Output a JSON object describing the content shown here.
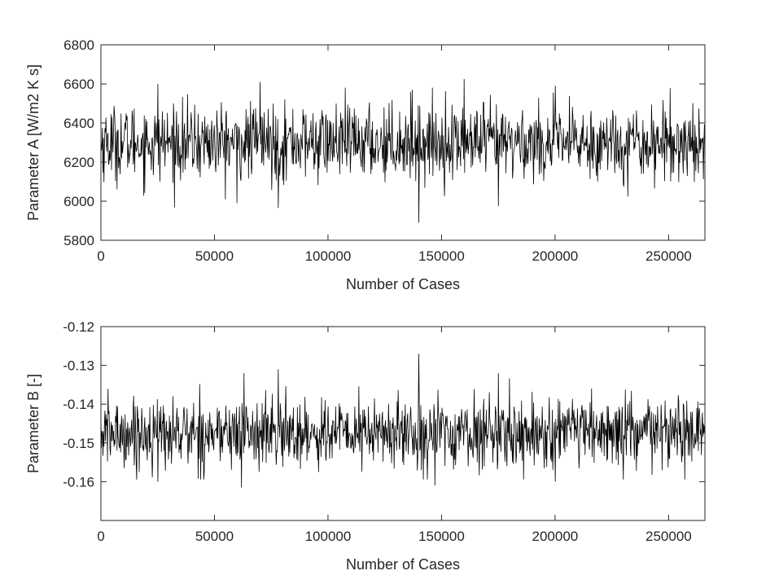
{
  "chart_data": [
    {
      "type": "line",
      "xlabel": "Number of Cases",
      "ylabel": "Parameter A [W/m2 K s]",
      "xlim": [
        0,
        266000
      ],
      "ylim": [
        5800,
        6800
      ],
      "xticks": [
        0,
        50000,
        100000,
        150000,
        200000,
        250000
      ],
      "yticks": [
        5800,
        6000,
        6200,
        6400,
        6600,
        6800
      ],
      "xtick_labels": [
        "0",
        "50000",
        "100000",
        "150000",
        "200000",
        "250000"
      ],
      "ytick_labels": [
        "5800",
        "6000",
        "6200",
        "6400",
        "6600",
        "6800"
      ],
      "grid": false,
      "series": [
        {
          "color": "#000000",
          "n_points": 1200,
          "mean": 6300,
          "std": 95,
          "min": 5890,
          "max": 6625,
          "notable_points": [
            {
              "x": 25000,
              "y": 6600
            },
            {
              "x": 60000,
              "y": 5990
            },
            {
              "x": 70000,
              "y": 6610
            },
            {
              "x": 78000,
              "y": 5965
            },
            {
              "x": 137000,
              "y": 6570
            },
            {
              "x": 140000,
              "y": 5890
            },
            {
              "x": 160000,
              "y": 6625
            },
            {
              "x": 175000,
              "y": 5975
            },
            {
              "x": 200000,
              "y": 6590
            }
          ]
        }
      ]
    },
    {
      "type": "line",
      "xlabel": "Number of Cases",
      "ylabel": "Parameter B [-]",
      "xlim": [
        0,
        266000
      ],
      "ylim": [
        -0.17,
        -0.12
      ],
      "xticks": [
        0,
        50000,
        100000,
        150000,
        200000,
        250000
      ],
      "yticks": [
        -0.16,
        -0.15,
        -0.14,
        -0.13,
        -0.12
      ],
      "xtick_labels": [
        "0",
        "50000",
        "100000",
        "150000",
        "200000",
        "250000"
      ],
      "ytick_labels": [
        "-0.16",
        "-0.15",
        "-0.14",
        "-0.13",
        "-0.12"
      ],
      "grid": false,
      "series": [
        {
          "color": "#000000",
          "n_points": 1200,
          "mean": -0.1475,
          "std": 0.0045,
          "min": -0.1615,
          "max": -0.127,
          "notable_points": [
            {
              "x": 25000,
              "y": -0.16
            },
            {
              "x": 62000,
              "y": -0.1615
            },
            {
              "x": 63000,
              "y": -0.132
            },
            {
              "x": 78000,
              "y": -0.131
            },
            {
              "x": 140000,
              "y": -0.127
            },
            {
              "x": 147000,
              "y": -0.161
            },
            {
              "x": 175000,
              "y": -0.132
            },
            {
              "x": 200000,
              "y": -0.16
            }
          ]
        }
      ]
    }
  ]
}
